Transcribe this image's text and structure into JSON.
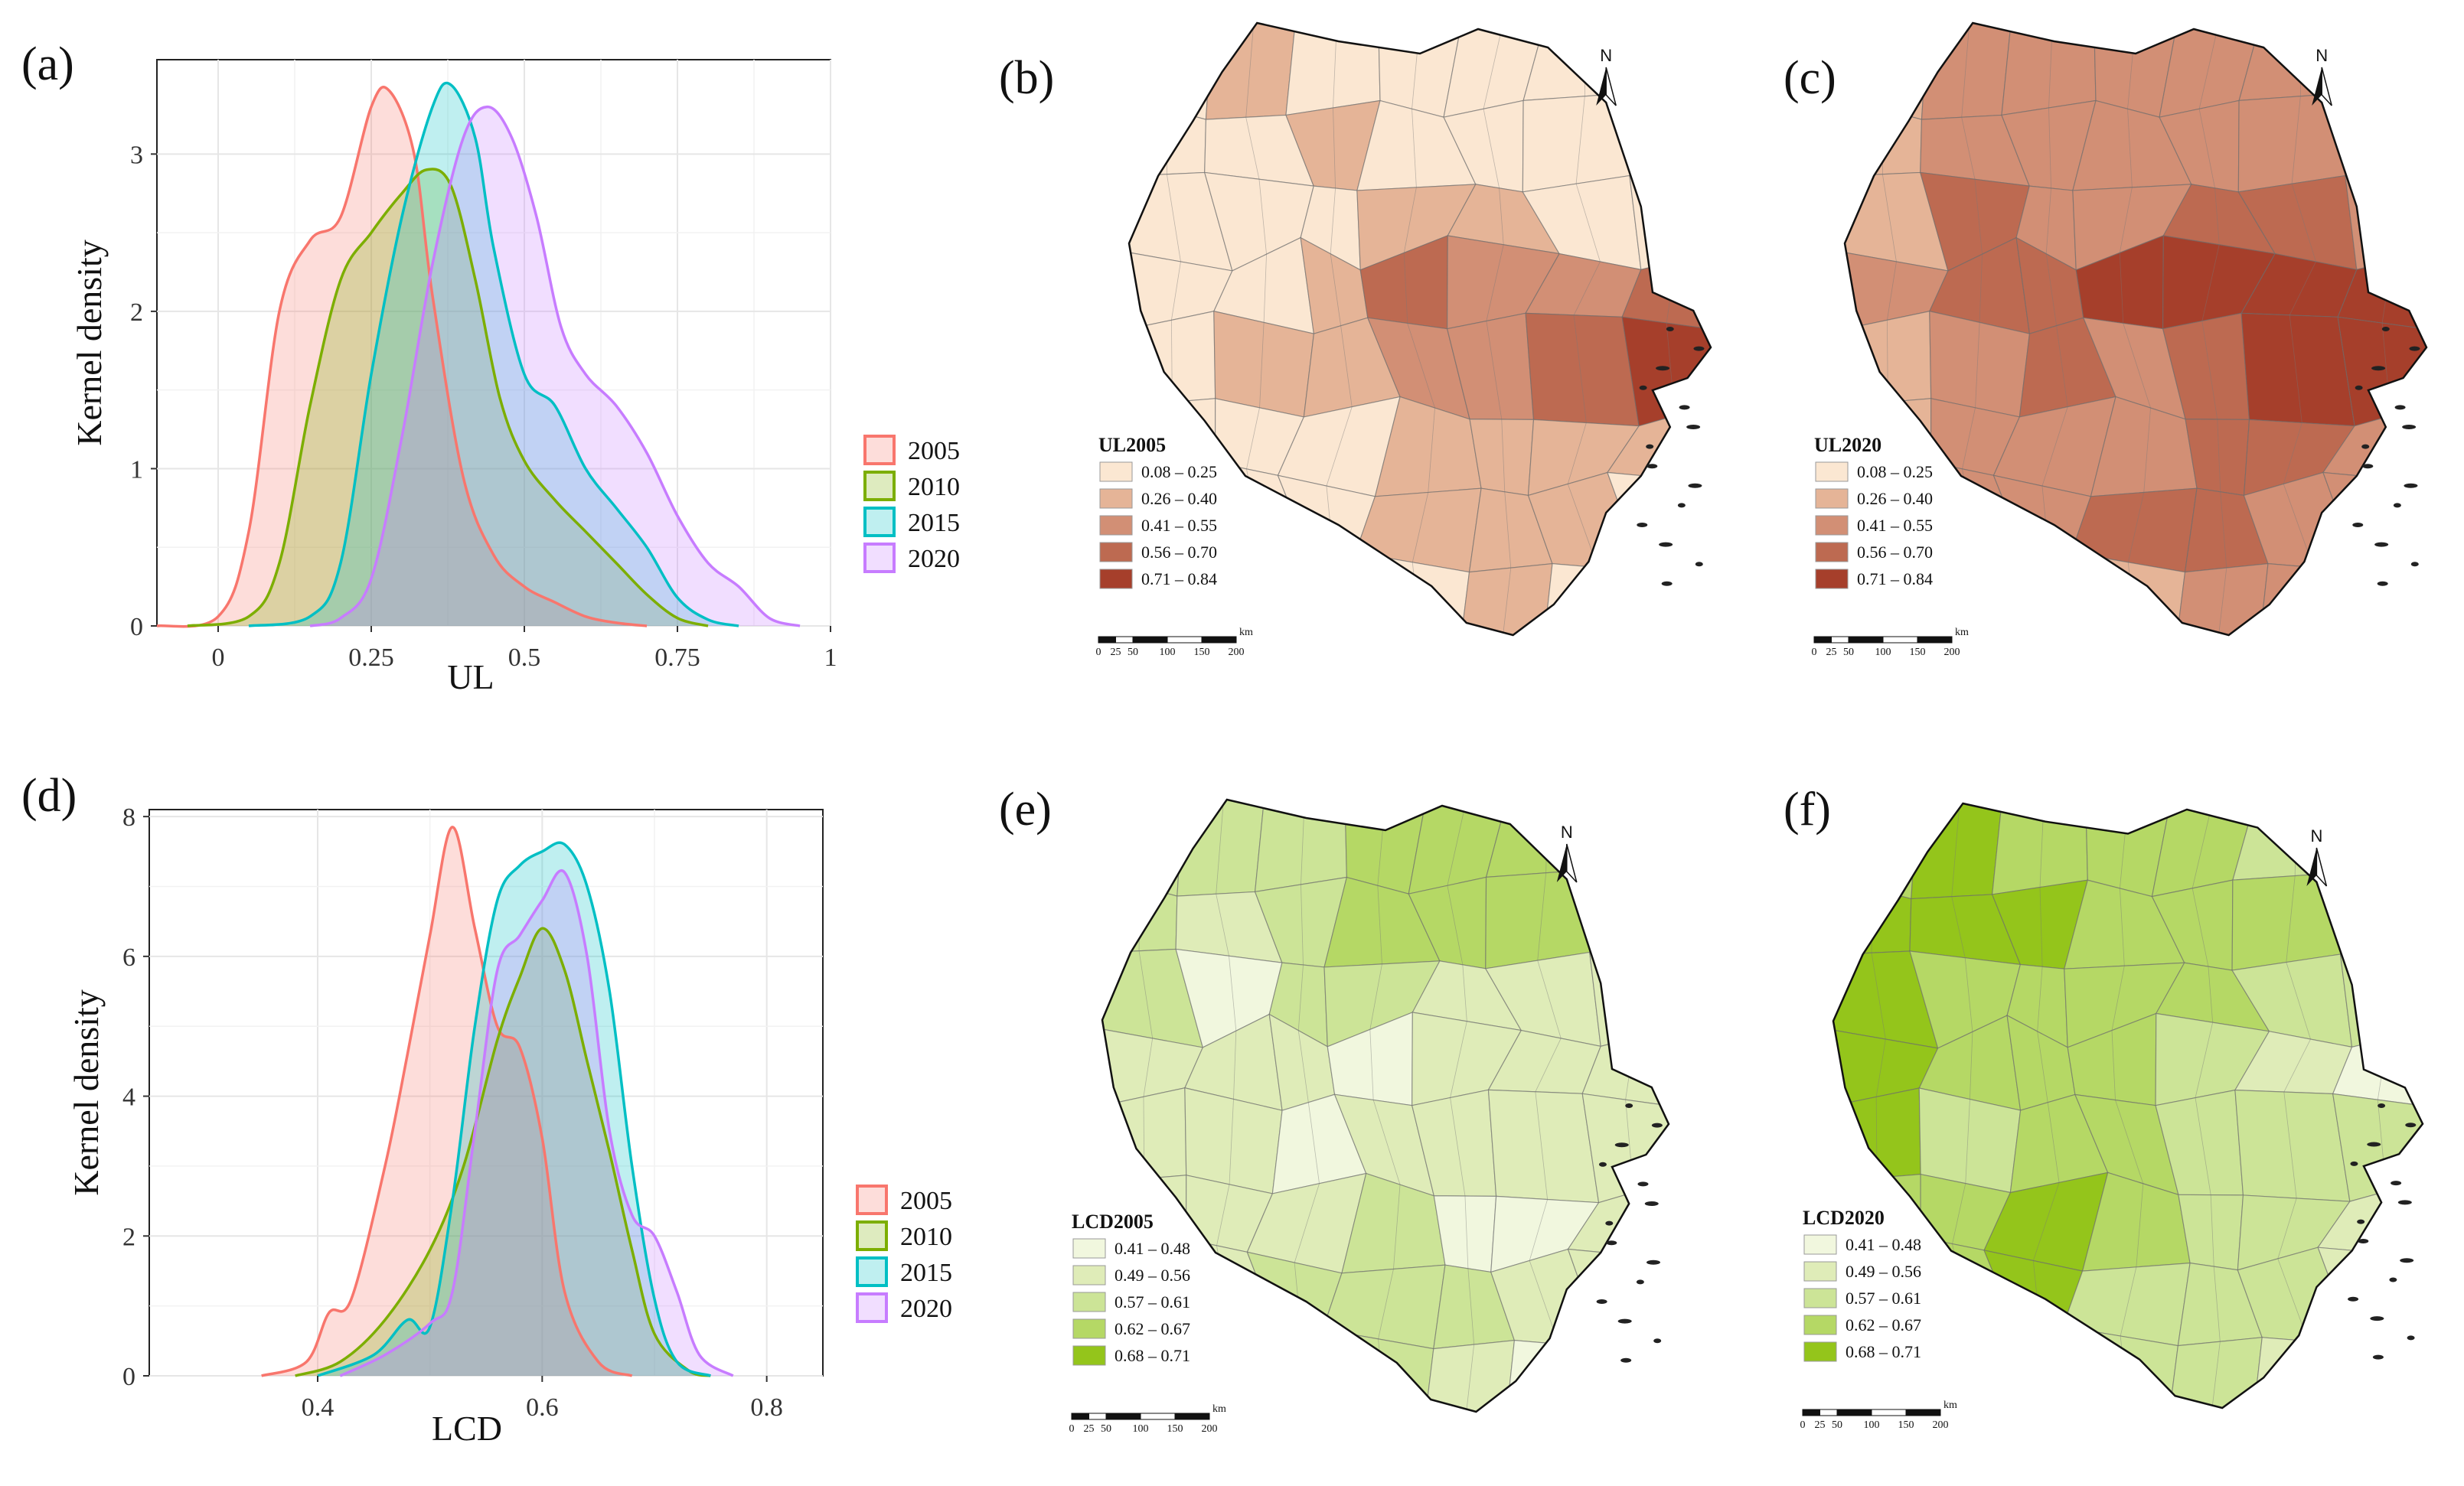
{
  "panel_labels": [
    "(a)",
    "(b)",
    "(c)",
    "(d)",
    "(e)",
    "(f)"
  ],
  "chart_data": [
    {
      "type": "area",
      "title": "",
      "xlabel": "UL",
      "ylabel": "Kernel density",
      "xlim": [
        -0.1,
        1.0
      ],
      "ylim": [
        0,
        3.6
      ],
      "xticks": [
        0,
        0.25,
        0.5,
        0.75,
        1
      ],
      "xtick_labels": [
        "0",
        "0.25",
        "0.5",
        "0.75",
        "1"
      ],
      "yticks": [
        0,
        1,
        2,
        3
      ],
      "ytick_labels": [
        "0",
        "1",
        "2",
        "3"
      ],
      "legend": [
        "2005",
        "2010",
        "2015",
        "2020"
      ],
      "colors": [
        "#f8766d",
        "#7cae00",
        "#00bfc4",
        "#c77cff"
      ],
      "series": [
        {
          "name": "2005",
          "x": [
            -0.1,
            0.0,
            0.05,
            0.1,
            0.15,
            0.2,
            0.25,
            0.28,
            0.32,
            0.35,
            0.4,
            0.45,
            0.5,
            0.55,
            0.6,
            0.65,
            0.7
          ],
          "y": [
            0,
            0.06,
            0.6,
            2.0,
            2.45,
            2.6,
            3.3,
            3.4,
            3.0,
            2.1,
            0.95,
            0.45,
            0.25,
            0.15,
            0.06,
            0.02,
            0
          ]
        },
        {
          "name": "2010",
          "x": [
            -0.05,
            0.05,
            0.1,
            0.15,
            0.2,
            0.25,
            0.3,
            0.34,
            0.38,
            0.42,
            0.46,
            0.5,
            0.55,
            0.6,
            0.65,
            0.7,
            0.75,
            0.8
          ],
          "y": [
            0,
            0.06,
            0.4,
            1.4,
            2.2,
            2.5,
            2.75,
            2.9,
            2.8,
            2.2,
            1.45,
            1.05,
            0.8,
            0.6,
            0.4,
            0.2,
            0.05,
            0
          ]
        },
        {
          "name": "2015",
          "x": [
            0.05,
            0.15,
            0.2,
            0.25,
            0.3,
            0.35,
            0.38,
            0.42,
            0.45,
            0.5,
            0.55,
            0.6,
            0.65,
            0.7,
            0.75,
            0.8,
            0.85
          ],
          "y": [
            0,
            0.06,
            0.4,
            1.6,
            2.6,
            3.3,
            3.44,
            3.1,
            2.4,
            1.6,
            1.4,
            1.0,
            0.75,
            0.5,
            0.18,
            0.04,
            0
          ]
        },
        {
          "name": "2020",
          "x": [
            0.15,
            0.2,
            0.25,
            0.3,
            0.35,
            0.4,
            0.44,
            0.48,
            0.52,
            0.56,
            0.6,
            0.65,
            0.7,
            0.75,
            0.8,
            0.85,
            0.9,
            0.95
          ],
          "y": [
            0,
            0.05,
            0.3,
            1.2,
            2.3,
            3.1,
            3.3,
            3.1,
            2.6,
            1.9,
            1.6,
            1.4,
            1.1,
            0.7,
            0.4,
            0.25,
            0.05,
            0
          ]
        }
      ]
    },
    {
      "type": "area",
      "title": "",
      "xlabel": "LCD",
      "ylabel": "Kernel density",
      "xlim": [
        0.25,
        0.85
      ],
      "ylim": [
        0,
        8.1
      ],
      "xticks": [
        0.4,
        0.6,
        0.8
      ],
      "xtick_labels": [
        "0.4",
        "0.6",
        "0.8"
      ],
      "yticks": [
        0,
        2,
        4,
        6,
        8
      ],
      "ytick_labels": [
        "0",
        "2",
        "4",
        "6",
        "8"
      ],
      "legend": [
        "2005",
        "2010",
        "2015",
        "2020"
      ],
      "colors": [
        "#f8766d",
        "#7cae00",
        "#00bfc4",
        "#c77cff"
      ],
      "series": [
        {
          "name": "2005",
          "x": [
            0.35,
            0.39,
            0.41,
            0.43,
            0.46,
            0.48,
            0.5,
            0.52,
            0.54,
            0.56,
            0.58,
            0.6,
            0.62,
            0.65,
            0.68
          ],
          "y": [
            0,
            0.2,
            0.9,
            1.1,
            3.0,
            4.6,
            6.3,
            7.85,
            6.4,
            5.0,
            4.7,
            3.4,
            1.2,
            0.2,
            0
          ]
        },
        {
          "name": "2010",
          "x": [
            0.38,
            0.42,
            0.46,
            0.5,
            0.53,
            0.56,
            0.58,
            0.6,
            0.62,
            0.64,
            0.66,
            0.68,
            0.7,
            0.73,
            0.75
          ],
          "y": [
            0,
            0.2,
            0.8,
            1.8,
            3.0,
            4.8,
            5.7,
            6.4,
            5.8,
            4.5,
            3.2,
            1.8,
            0.6,
            0.08,
            0
          ]
        },
        {
          "name": "2015",
          "x": [
            0.4,
            0.45,
            0.48,
            0.5,
            0.52,
            0.54,
            0.56,
            0.58,
            0.6,
            0.62,
            0.64,
            0.66,
            0.68,
            0.7,
            0.72,
            0.75
          ],
          "y": [
            0,
            0.3,
            0.8,
            0.7,
            2.5,
            5.0,
            6.8,
            7.3,
            7.5,
            7.6,
            7.0,
            5.5,
            3.0,
            1.1,
            0.2,
            0
          ]
        },
        {
          "name": "2020",
          "x": [
            0.42,
            0.46,
            0.5,
            0.52,
            0.54,
            0.56,
            0.58,
            0.6,
            0.62,
            0.64,
            0.66,
            0.68,
            0.7,
            0.72,
            0.74,
            0.77
          ],
          "y": [
            0,
            0.3,
            0.75,
            1.2,
            3.5,
            5.8,
            6.3,
            6.8,
            7.2,
            6.0,
            3.5,
            2.3,
            2.0,
            1.2,
            0.3,
            0
          ]
        }
      ]
    }
  ],
  "maps": [
    {
      "id": "b",
      "title": "UL2005",
      "classes": [
        "0.08 – 0.25",
        "0.26 – 0.40",
        "0.41 – 0.55",
        "0.56 – 0.70",
        "0.71 – 0.84"
      ],
      "colors": [
        "#fbe7d2",
        "#e5b497",
        "#d28f75",
        "#bd6a51",
        "#a63f2b"
      ]
    },
    {
      "id": "c",
      "title": "UL2020",
      "classes": [
        "0.08 – 0.25",
        "0.26 – 0.40",
        "0.41 – 0.55",
        "0.56 – 0.70",
        "0.71 – 0.84"
      ],
      "colors": [
        "#fbe7d2",
        "#e5b497",
        "#d28f75",
        "#bd6a51",
        "#a63f2b"
      ]
    },
    {
      "id": "e",
      "title": "LCD2005",
      "classes": [
        "0.41 – 0.48",
        "0.49 – 0.56",
        "0.57 – 0.61",
        "0.62 – 0.67",
        "0.68 – 0.71"
      ],
      "colors": [
        "#f1f7de",
        "#dfecb8",
        "#cce497",
        "#b5d865",
        "#94c51b"
      ]
    },
    {
      "id": "f",
      "title": "LCD2020",
      "classes": [
        "0.41 – 0.48",
        "0.49 – 0.56",
        "0.57 – 0.61",
        "0.62 – 0.67",
        "0.68 – 0.71"
      ],
      "colors": [
        "#f1f7de",
        "#dfecb8",
        "#cce497",
        "#b5d865",
        "#94c51b"
      ]
    }
  ],
  "map_common": {
    "north_label": "N",
    "scale_unit": "km",
    "scale_ticks": [
      "0",
      "25",
      "50",
      "100",
      "150",
      "200"
    ]
  }
}
